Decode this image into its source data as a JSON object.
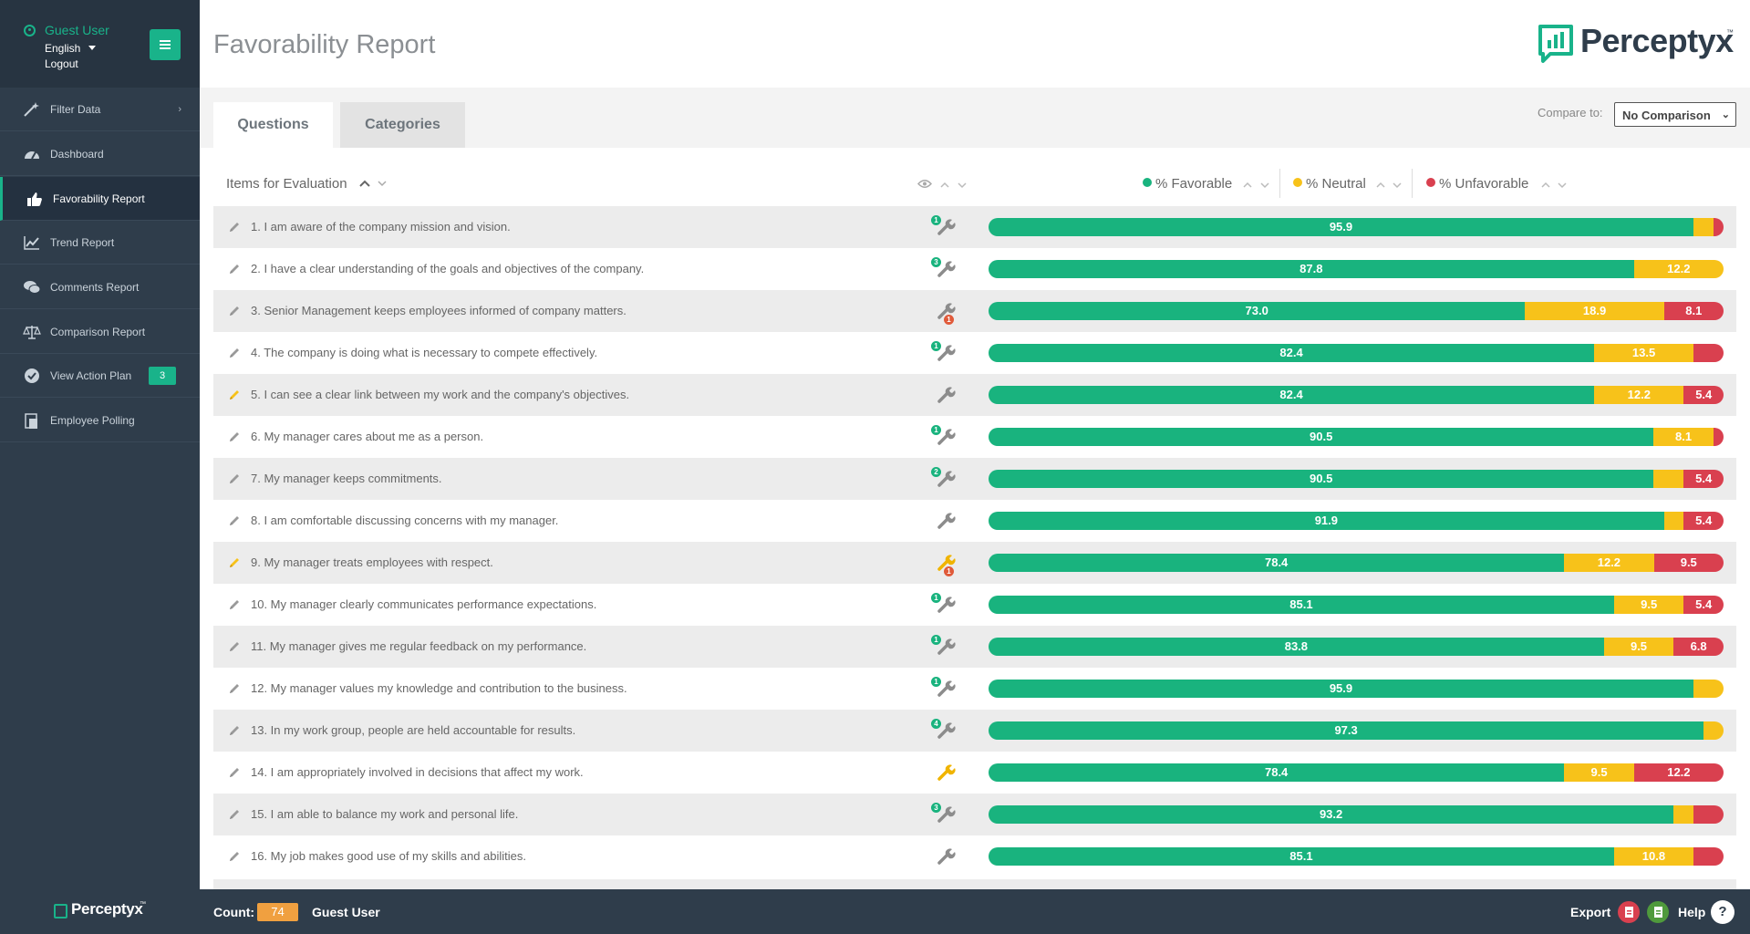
{
  "user": {
    "name": "Guest User",
    "language": "English",
    "logout": "Logout"
  },
  "nav": [
    {
      "label": "Filter Data",
      "icon": "wand-icon"
    },
    {
      "label": "Dashboard",
      "icon": "dashboard-icon"
    },
    {
      "label": "Favorability Report",
      "icon": "thumbs-up-icon",
      "active": true
    },
    {
      "label": "Trend Report",
      "icon": "trend-icon"
    },
    {
      "label": "Comments Report",
      "icon": "comments-icon"
    },
    {
      "label": "Comparison Report",
      "icon": "scale-icon"
    },
    {
      "label": "View Action Plan",
      "icon": "check-circle-icon",
      "badge": "3"
    },
    {
      "label": "Employee Polling",
      "icon": "clipboard-icon"
    }
  ],
  "brand": {
    "name": "Perceptyx",
    "tm": "™"
  },
  "page_title": "Favorability Report",
  "tabs": [
    "Questions",
    "Categories"
  ],
  "compare": {
    "label": "Compare to:",
    "value": "No Comparison"
  },
  "table_header": {
    "items": "Items for Evaluation",
    "favorable": "% Favorable",
    "neutral": "% Neutral",
    "unfavorable": "% Unfavorable"
  },
  "colors": {
    "favorable": "#19b37e",
    "neutral": "#f7c21a",
    "unfavorable": "#d9404f",
    "accent": "#19b38a",
    "sidebar": "#2f3d4b"
  },
  "rows": [
    {
      "q": "1. I am aware of the company mission and vision.",
      "fav": 95.9,
      "neu": 2.7,
      "unf": 1.4,
      "badge": "1",
      "badge_pos": "top",
      "wrench": "gray",
      "pencil": "gray"
    },
    {
      "q": "2. I have a clear understanding of the goals and objectives of the company.",
      "fav": 87.8,
      "neu": 12.2,
      "unf": 0.0,
      "badge": "3",
      "badge_pos": "top",
      "wrench": "gray",
      "pencil": "gray"
    },
    {
      "q": "3. Senior Management keeps employees informed of company matters.",
      "fav": 73.0,
      "neu": 18.9,
      "unf": 8.1,
      "badge": "1",
      "badge_pos": "bottom",
      "wrench": "gray",
      "pencil": "gray"
    },
    {
      "q": "4. The company is doing what is necessary to compete effectively.",
      "fav": 82.4,
      "neu": 13.5,
      "unf": 4.1,
      "badge": "1",
      "badge_pos": "top",
      "wrench": "gray",
      "pencil": "gray"
    },
    {
      "q": "5. I can see a clear link between my work and the company's objectives.",
      "fav": 82.4,
      "neu": 12.2,
      "unf": 5.4,
      "badge": "",
      "badge_pos": "",
      "wrench": "gray",
      "pencil": "yellow"
    },
    {
      "q": "6. My manager cares about me as a person.",
      "fav": 90.5,
      "neu": 8.1,
      "unf": 1.4,
      "badge": "1",
      "badge_pos": "top",
      "wrench": "gray",
      "pencil": "gray"
    },
    {
      "q": "7. My manager keeps commitments.",
      "fav": 90.5,
      "neu": 4.1,
      "unf": 5.4,
      "badge": "2",
      "badge_pos": "top",
      "wrench": "gray",
      "pencil": "gray"
    },
    {
      "q": "8. I am comfortable discussing concerns with my manager.",
      "fav": 91.9,
      "neu": 2.7,
      "unf": 5.4,
      "badge": "",
      "badge_pos": "",
      "wrench": "gray",
      "pencil": "gray"
    },
    {
      "q": "9. My manager treats employees with respect.",
      "fav": 78.4,
      "neu": 12.2,
      "unf": 9.5,
      "badge": "1",
      "badge_pos": "bottom",
      "wrench": "yellow",
      "pencil": "yellow"
    },
    {
      "q": "10. My manager clearly communicates performance expectations.",
      "fav": 85.1,
      "neu": 9.5,
      "unf": 5.4,
      "badge": "1",
      "badge_pos": "top",
      "wrench": "gray",
      "pencil": "gray"
    },
    {
      "q": "11. My manager gives me regular feedback on my performance.",
      "fav": 83.8,
      "neu": 9.5,
      "unf": 6.8,
      "badge": "1",
      "badge_pos": "top",
      "wrench": "gray",
      "pencil": "gray"
    },
    {
      "q": "12. My manager values my knowledge and contribution to the business.",
      "fav": 95.9,
      "neu": 4.1,
      "unf": 0.0,
      "badge": "1",
      "badge_pos": "top",
      "wrench": "gray",
      "pencil": "gray"
    },
    {
      "q": "13. In my work group, people are held accountable for results.",
      "fav": 97.3,
      "neu": 2.7,
      "unf": 0.0,
      "badge": "4",
      "badge_pos": "top",
      "wrench": "gray",
      "pencil": "gray"
    },
    {
      "q": "14. I am appropriately involved in decisions that affect my work.",
      "fav": 78.4,
      "neu": 9.5,
      "unf": 12.2,
      "badge": "",
      "badge_pos": "",
      "wrench": "yellow",
      "pencil": "gray"
    },
    {
      "q": "15. I am able to balance my work and personal life.",
      "fav": 93.2,
      "neu": 2.7,
      "unf": 4.1,
      "badge": "3",
      "badge_pos": "top",
      "wrench": "gray",
      "pencil": "gray"
    },
    {
      "q": "16. My job makes good use of my skills and abilities.",
      "fav": 85.1,
      "neu": 10.8,
      "unf": 4.1,
      "badge": "",
      "badge_pos": "",
      "wrench": "gray",
      "pencil": "gray"
    }
  ],
  "footer": {
    "count_label": "Count:",
    "count": "74",
    "user": "Guest User",
    "export": "Export",
    "help": "Help",
    "help_icon": "?"
  }
}
